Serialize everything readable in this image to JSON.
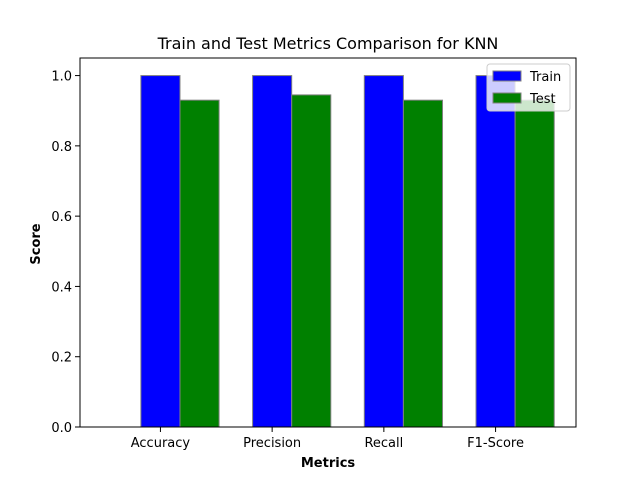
{
  "chart_data": {
    "type": "bar",
    "title": "Train and Test Metrics Comparison for KNN",
    "xlabel": "Metrics",
    "ylabel": "Score",
    "categories": [
      "Accuracy",
      "Precision",
      "Recall",
      "F1-Score"
    ],
    "series": [
      {
        "name": "Train",
        "values": [
          1.0,
          1.0,
          1.0,
          1.0
        ],
        "color": "#0000ff"
      },
      {
        "name": "Test",
        "values": [
          0.93,
          0.945,
          0.93,
          0.93
        ],
        "color": "#008000"
      }
    ],
    "ylim": [
      0,
      1.05
    ],
    "yticks": [
      0.0,
      0.2,
      0.4,
      0.6,
      0.8,
      1.0
    ],
    "ytick_labels": [
      "0.0",
      "0.2",
      "0.4",
      "0.6",
      "0.8",
      "1.0"
    ],
    "grid": false,
    "legend_position": "top-right",
    "bar_edge_color": "#808080"
  }
}
